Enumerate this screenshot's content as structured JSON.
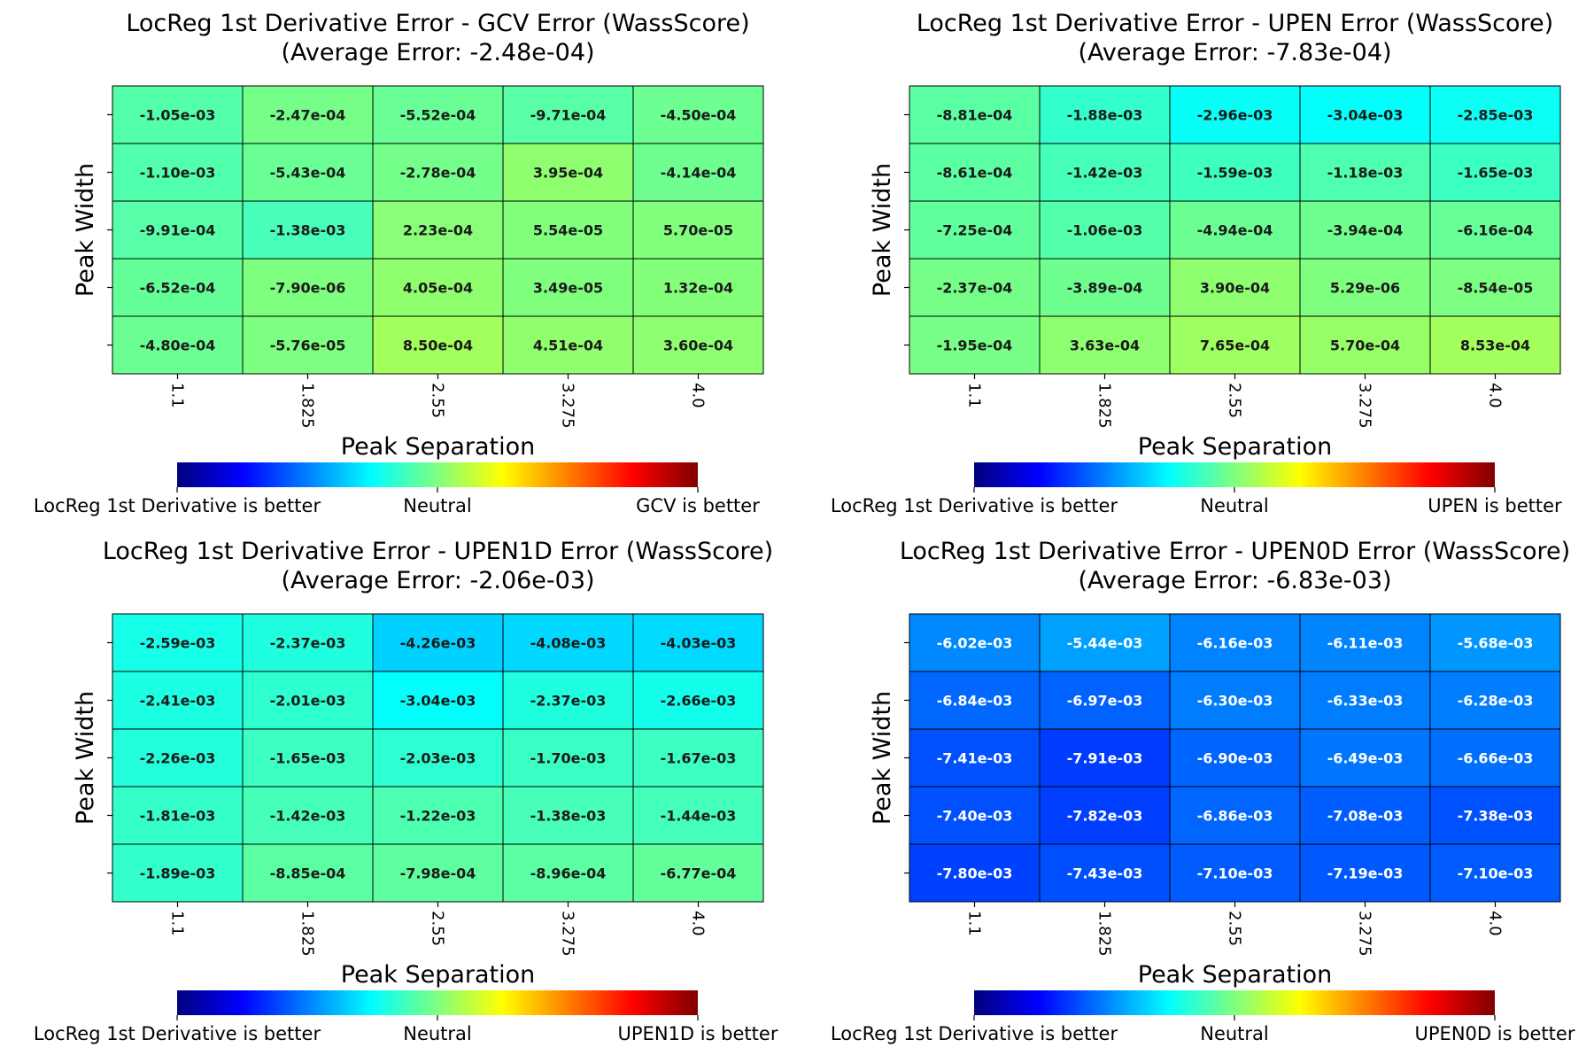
{
  "colormap": {
    "name": "jet",
    "stops": [
      "#00007f",
      "#0000ff",
      "#007fff",
      "#00ffff",
      "#7fff7f",
      "#ffff00",
      "#ff7f00",
      "#ff0000",
      "#7f0000"
    ],
    "center": 0,
    "half_range": 0.0125
  },
  "chart_data": [
    {
      "type": "heatmap",
      "title": "LocReg 1st Derivative Error - GCV Error (WassScore)",
      "subtitle": "(Average Error: -2.48e-04)",
      "xlabel": "Peak Separation",
      "ylabel": "Peak Width",
      "x": [
        "1.1",
        "1.825",
        "2.55",
        "3.275",
        "4.0"
      ],
      "y": [
        "",
        "",
        "",
        "",
        ""
      ],
      "values": [
        [
          -0.00105,
          -0.000247,
          -0.000552,
          -0.000971,
          -0.00045
        ],
        [
          -0.0011,
          -0.000543,
          -0.000278,
          0.000395,
          -0.000414
        ],
        [
          -0.000991,
          -0.00138,
          0.000223,
          5.54e-05,
          5.7e-05
        ],
        [
          -0.000652,
          -7.9e-06,
          0.000405,
          3.49e-05,
          0.000132
        ],
        [
          -0.00048,
          -5.76e-05,
          0.00085,
          0.000451,
          0.00036
        ]
      ],
      "labels": [
        [
          "-1.05e-03",
          "-2.47e-04",
          "-5.52e-04",
          "-9.71e-04",
          "-4.50e-04"
        ],
        [
          "-1.10e-03",
          "-5.43e-04",
          "-2.78e-04",
          "3.95e-04",
          "-4.14e-04"
        ],
        [
          "-9.91e-04",
          "-1.38e-03",
          "2.23e-04",
          "5.54e-05",
          "5.70e-05"
        ],
        [
          "-6.52e-04",
          "-7.90e-06",
          "4.05e-04",
          "3.49e-05",
          "1.32e-04"
        ],
        [
          "-4.80e-04",
          "-5.76e-05",
          "8.50e-04",
          "4.51e-04",
          "3.60e-04"
        ]
      ],
      "colorbar": {
        "left": "LocReg 1st Derivative is better",
        "center": "Neutral",
        "right": "GCV is better"
      }
    },
    {
      "type": "heatmap",
      "title": "LocReg 1st Derivative Error - UPEN Error (WassScore)",
      "subtitle": "(Average Error: -7.83e-04)",
      "xlabel": "Peak Separation",
      "ylabel": "Peak Width",
      "x": [
        "1.1",
        "1.825",
        "2.55",
        "3.275",
        "4.0"
      ],
      "y": [
        "",
        "",
        "",
        "",
        ""
      ],
      "values": [
        [
          -0.000881,
          -0.00188,
          -0.00296,
          -0.00304,
          -0.00285
        ],
        [
          -0.000861,
          -0.00142,
          -0.00159,
          -0.00118,
          -0.00165
        ],
        [
          -0.000725,
          -0.00106,
          -0.000494,
          -0.000394,
          -0.000616
        ],
        [
          -0.000237,
          -0.000389,
          0.00039,
          5.29e-06,
          -8.54e-05
        ],
        [
          -0.000195,
          0.000363,
          0.000765,
          0.00057,
          0.000853
        ]
      ],
      "labels": [
        [
          "-8.81e-04",
          "-1.88e-03",
          "-2.96e-03",
          "-3.04e-03",
          "-2.85e-03"
        ],
        [
          "-8.61e-04",
          "-1.42e-03",
          "-1.59e-03",
          "-1.18e-03",
          "-1.65e-03"
        ],
        [
          "-7.25e-04",
          "-1.06e-03",
          "-4.94e-04",
          "-3.94e-04",
          "-6.16e-04"
        ],
        [
          "-2.37e-04",
          "-3.89e-04",
          "3.90e-04",
          "5.29e-06",
          "-8.54e-05"
        ],
        [
          "-1.95e-04",
          "3.63e-04",
          "7.65e-04",
          "5.70e-04",
          "8.53e-04"
        ]
      ],
      "colorbar": {
        "left": "LocReg 1st Derivative is better",
        "center": "Neutral",
        "right": "UPEN is better"
      }
    },
    {
      "type": "heatmap",
      "title": "LocReg 1st Derivative Error - UPEN1D Error (WassScore)",
      "subtitle": "(Average Error: -2.06e-03)",
      "xlabel": "Peak Separation",
      "ylabel": "Peak Width",
      "x": [
        "1.1",
        "1.825",
        "2.55",
        "3.275",
        "4.0"
      ],
      "y": [
        "",
        "",
        "",
        "",
        ""
      ],
      "values": [
        [
          -0.00259,
          -0.00237,
          -0.00426,
          -0.00408,
          -0.00403
        ],
        [
          -0.00241,
          -0.00201,
          -0.00304,
          -0.00237,
          -0.00266
        ],
        [
          -0.00226,
          -0.00165,
          -0.00203,
          -0.0017,
          -0.00167
        ],
        [
          -0.00181,
          -0.00142,
          -0.00122,
          -0.00138,
          -0.00144
        ],
        [
          -0.00189,
          -0.000885,
          -0.000798,
          -0.000896,
          -0.000677
        ]
      ],
      "labels": [
        [
          "-2.59e-03",
          "-2.37e-03",
          "-4.26e-03",
          "-4.08e-03",
          "-4.03e-03"
        ],
        [
          "-2.41e-03",
          "-2.01e-03",
          "-3.04e-03",
          "-2.37e-03",
          "-2.66e-03"
        ],
        [
          "-2.26e-03",
          "-1.65e-03",
          "-2.03e-03",
          "-1.70e-03",
          "-1.67e-03"
        ],
        [
          "-1.81e-03",
          "-1.42e-03",
          "-1.22e-03",
          "-1.38e-03",
          "-1.44e-03"
        ],
        [
          "-1.89e-03",
          "-8.85e-04",
          "-7.98e-04",
          "-8.96e-04",
          "-6.77e-04"
        ]
      ],
      "colorbar": {
        "left": "LocReg 1st Derivative is better",
        "center": "Neutral",
        "right": "UPEN1D is better"
      }
    },
    {
      "type": "heatmap",
      "title": "LocReg 1st Derivative Error - UPEN0D Error (WassScore)",
      "subtitle": "(Average Error: -6.83e-03)",
      "xlabel": "Peak Separation",
      "ylabel": "Peak Width",
      "x": [
        "1.1",
        "1.825",
        "2.55",
        "3.275",
        "4.0"
      ],
      "y": [
        "",
        "",
        "",
        "",
        ""
      ],
      "values": [
        [
          -0.00602,
          -0.00544,
          -0.00616,
          -0.00611,
          -0.00568
        ],
        [
          -0.00684,
          -0.00697,
          -0.0063,
          -0.00633,
          -0.00628
        ],
        [
          -0.00741,
          -0.00791,
          -0.0069,
          -0.00649,
          -0.00666
        ],
        [
          -0.0074,
          -0.00782,
          -0.00686,
          -0.00708,
          -0.00738
        ],
        [
          -0.0078,
          -0.00743,
          -0.0071,
          -0.00719,
          -0.0071
        ]
      ],
      "labels": [
        [
          "-6.02e-03",
          "-5.44e-03",
          "-6.16e-03",
          "-6.11e-03",
          "-5.68e-03"
        ],
        [
          "-6.84e-03",
          "-6.97e-03",
          "-6.30e-03",
          "-6.33e-03",
          "-6.28e-03"
        ],
        [
          "-7.41e-03",
          "-7.91e-03",
          "-6.90e-03",
          "-6.49e-03",
          "-6.66e-03"
        ],
        [
          "-7.40e-03",
          "-7.82e-03",
          "-6.86e-03",
          "-7.08e-03",
          "-7.38e-03"
        ],
        [
          "-7.80e-03",
          "-7.43e-03",
          "-7.10e-03",
          "-7.19e-03",
          "-7.10e-03"
        ]
      ],
      "colorbar": {
        "left": "LocReg 1st Derivative is better",
        "center": "Neutral",
        "right": "UPEN0D is better"
      }
    }
  ]
}
